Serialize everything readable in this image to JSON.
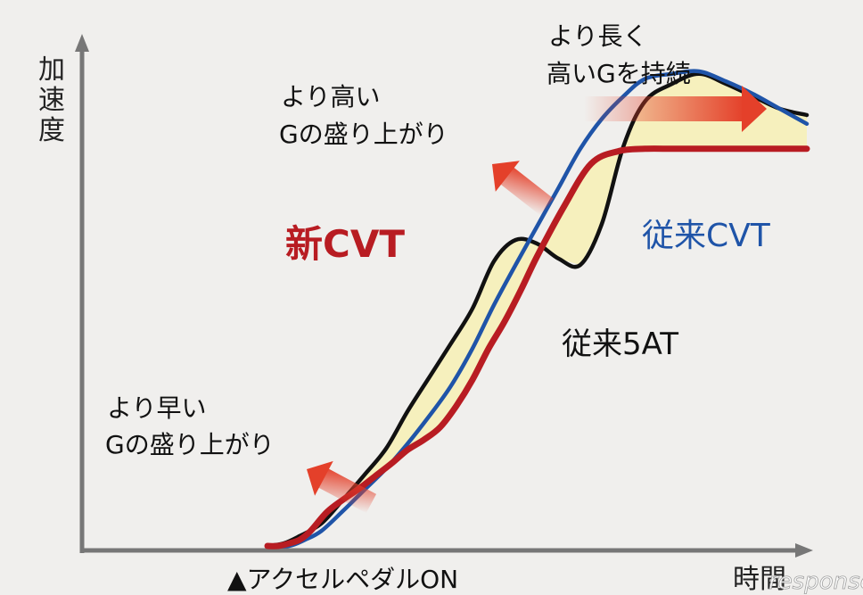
{
  "chart_data": {
    "type": "line",
    "ylabel": "加速度",
    "xlabel": "時間",
    "x_marker_label": "▲アクセルペダルON",
    "colors": {
      "new_cvt": "#b81c22",
      "old_cvt": "#1f54a8",
      "old_5at": "#111111",
      "band": "#f6f0bd",
      "axis": "#777777",
      "arrow": "#e4402a"
    },
    "series": [
      {
        "name": "新CVT",
        "key": "new_cvt",
        "x": [
          0,
          2,
          4,
          6,
          8,
          11,
          14,
          17,
          20,
          23,
          26,
          29,
          32,
          35,
          38,
          41,
          44,
          47,
          50,
          55,
          60,
          65,
          70,
          75,
          80,
          85,
          90,
          95,
          100
        ],
        "values": [
          0,
          0,
          2,
          5,
          12,
          27,
          37,
          46,
          56,
          66,
          77,
          85,
          95,
          112,
          133,
          158,
          180,
          205,
          232,
          272,
          306,
          316,
          318,
          318,
          318,
          318,
          318,
          318,
          318
        ]
      },
      {
        "name": "従来CVT",
        "key": "old_cvt",
        "x": [
          0,
          4,
          7,
          10,
          14,
          18,
          22,
          26,
          30,
          34,
          38,
          42,
          46,
          50,
          54,
          58,
          62,
          66,
          70,
          75,
          80,
          85,
          90,
          95,
          100
        ],
        "values": [
          0,
          0,
          5,
          12,
          28,
          45,
          62,
          82,
          104,
          128,
          158,
          193,
          225,
          256,
          287,
          318,
          342,
          360,
          374,
          378,
          380,
          372,
          362,
          350,
          338
        ]
      },
      {
        "name": "従来5AT",
        "key": "old_5at",
        "x": [
          0,
          3,
          6,
          10,
          14,
          18,
          22,
          26,
          30,
          34,
          38,
          42,
          46,
          50,
          54,
          58,
          62,
          66,
          70,
          75,
          80,
          85,
          90,
          95,
          100
        ],
        "values": [
          0,
          2,
          8,
          18,
          37,
          57,
          78,
          108,
          135,
          162,
          190,
          228,
          245,
          242,
          230,
          225,
          258,
          320,
          356,
          370,
          378,
          370,
          360,
          350,
          345
        ]
      }
    ],
    "annotations": [
      {
        "key": "a1l1",
        "text": "より長く"
      },
      {
        "key": "a1l2",
        "text": "高いGを持続"
      },
      {
        "key": "a2l1",
        "text": "より高い"
      },
      {
        "key": "a2l2",
        "text": "Gの盛り上がり"
      },
      {
        "key": "a3l1",
        "text": "より早い"
      },
      {
        "key": "a3l2",
        "text": "Gの盛り上がり"
      }
    ],
    "watermark": "response."
  }
}
